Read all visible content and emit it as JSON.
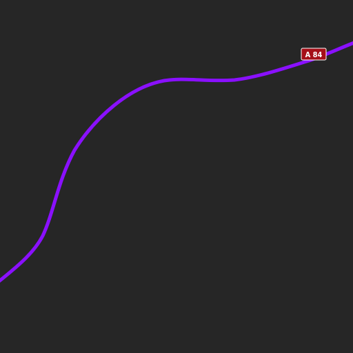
{
  "map": {
    "background_color": "#262626",
    "road": {
      "kind": "motorway",
      "color": "#8a10ff",
      "shield": {
        "label": "A 84",
        "background_color": "#a50f18",
        "border_color": "#ffffff",
        "text_color": "#ffffff"
      }
    }
  }
}
